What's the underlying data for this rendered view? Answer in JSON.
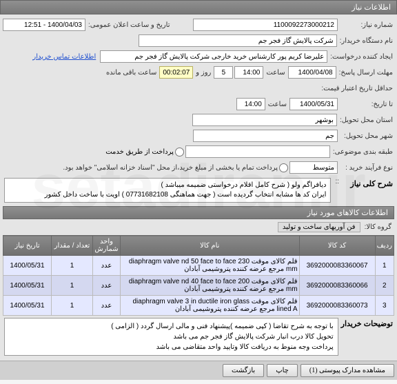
{
  "header_title": "اطلاعات نیاز",
  "watermark": "setadiran.ir",
  "rows": {
    "need_no_lbl": "شماره نیاز:",
    "need_no_val": "1100092273000212",
    "pub_time_lbl": "تاریخ و ساعت اعلان عمومی:",
    "pub_time_val": "1400/04/03 - 12:51",
    "buyer_lbl": "نام دستگاه خریدار:",
    "buyer_val": "شرکت پالایش گاز فجر جم",
    "creator_lbl": "ایجاد کننده درخواست:",
    "creator_val": "علیرضا کریم پور کارشناس خرید خارجی شرکت پالایش گاز فجر جم",
    "buyer_info_link": "اطلاعات تماس خریدار",
    "deadline_lbl": "مهلت ارسال پاسخ:",
    "deadline_date": "1400/04/08",
    "hour_lbl": "ساعت",
    "deadline_hour": "14:00",
    "day_lbl": "روز و",
    "remain_days": "5",
    "remain_time": "00:02:07",
    "remain_lbl": "ساعت باقی مانده",
    "validity_lbl": "حداقل تاریخ اعتبار قیمت:",
    "until_lbl": "تا تاریخ:",
    "until_date": "1400/05/31",
    "until_hour": "14:00",
    "province_lbl": "استان محل تحویل:",
    "province_val": "بوشهر",
    "city_lbl": "شهر محل تحویل:",
    "city_val": "جم",
    "budget_lbl": "طبقه بندی موضوعی:",
    "purchase_lbl": "نوع فرآیند خرید :",
    "purchase_val": "متوسط",
    "pay_opt1": "پرداخت از طریق خدمت",
    "pay_opt2": "پرداخت تمام یا بخشی از مبلغ خرید،از محل \"اسناد خزانه اسلامی\" خواهد بود.",
    "desc_header": "شرح کلی نیاز",
    "desc_lbl": "::",
    "desc_text1": "دیافراگم ولو ( شرح کامل اقلام درخواستی ضمیمه میباشد )",
    "desc_text2": "ایران کد ها مشابه انتخاب گردیده است ( جهت هماهنگی   07731682108 ) اویت با ساخت داخل کشور",
    "items_header": "اطلاعات کالاهای مورد نیاز",
    "cat_lbl": "گروه کالا:",
    "cat_val": "فن آوریهای ساخت و تولید"
  },
  "table": {
    "cols": [
      "ردیف",
      "کد کالا",
      "نام کالا",
      "واحد شمارش",
      "تعداد / مقدار",
      "تاریخ نیاز"
    ],
    "rows": [
      [
        "1",
        "3692000083360067",
        "قلم کالای موقت diaphragm valve nd 50 face to face 230 mm مرجع عرضه کننده پتروشیمی آبادان",
        "عدد",
        "1",
        "1400/05/31"
      ],
      [
        "2",
        "3692000083360066",
        "قلم کالای موقت diaphragm valve nd 40 face to face 200 mm مرجع عرضه کننده پتروشیمی آبادان",
        "عدد",
        "1",
        "1400/05/31"
      ],
      [
        "3",
        "3692000083360073",
        "قلم کالای موقت diaphragm valve 3 in ductile iron glass lined A مرجع عرضه کننده پتروشیمی آبادان",
        "عدد",
        "1",
        "1400/05/31"
      ]
    ]
  },
  "notes": {
    "lbl": "توضیحات خریدار",
    "line1": "با توجه به شرح تقاضا ( کپی ضمیمه )پیشنهاد فنی و مالی ارسال گردد ( الزامی )",
    "line2": "تحویل کالا درب انبار شرکت پالایش گاز فجر جم می باشد",
    "line3": "پرداخت وجه منوط به دریافت کالا وتایید واحد متقاضی می باشد"
  },
  "buttons": {
    "attach": "مشاهده مدارک پیوستی (1)",
    "print": "چاپ",
    "back": "بازگشت"
  }
}
